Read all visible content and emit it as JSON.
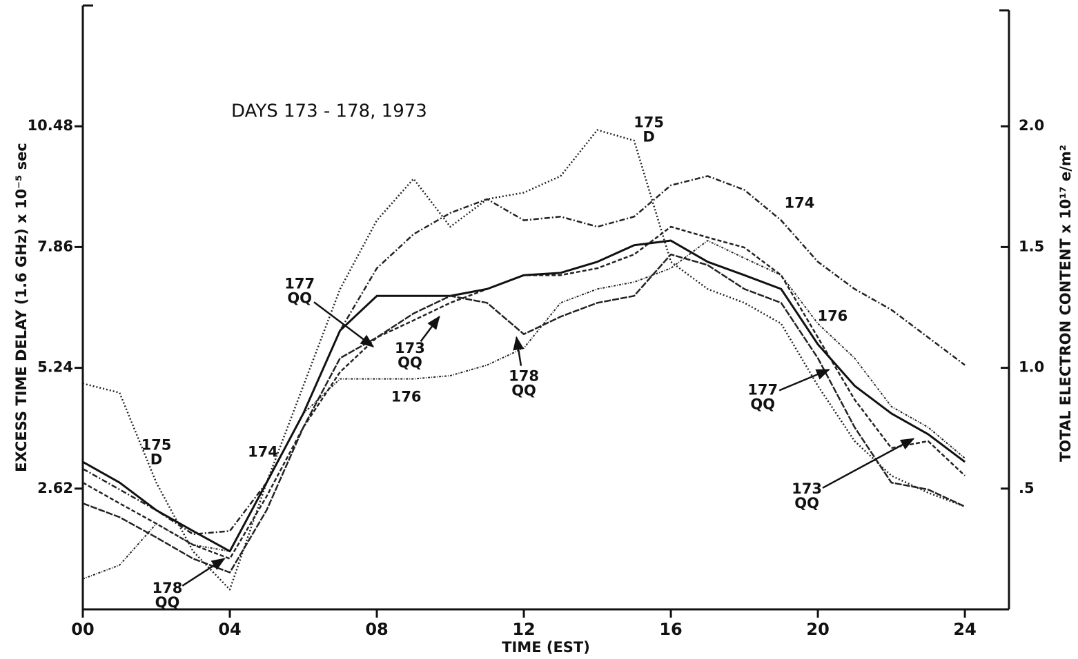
{
  "chart_data": {
    "type": "line",
    "title": "DAYS 173 - 178, 1973",
    "x_label": "TIME (EST)",
    "y_label": "EXCESS TIME DELAY (1.6 GHz) x 10⁻⁵ sec",
    "y2_label": "TOTAL ELECTRON CONTENT x 10¹⁷ e/m²",
    "x": [
      0,
      1,
      2,
      3,
      4,
      5,
      6,
      7,
      8,
      9,
      10,
      11,
      12,
      13,
      14,
      15,
      16,
      17,
      18,
      19,
      20,
      21,
      22,
      23,
      24
    ],
    "xlim": [
      0,
      25.2
    ],
    "xticks": [
      {
        "value": 0,
        "label": "00"
      },
      {
        "value": 4,
        "label": "04"
      },
      {
        "value": 8,
        "label": "08"
      },
      12,
      16,
      20,
      24
    ],
    "ylim": [
      0,
      13.1
    ],
    "yticks": [
      2.62,
      5.24,
      7.86,
      10.48
    ],
    "y2lim": [
      0,
      2.5
    ],
    "y2ticks": [
      {
        "value": 0.5,
        "label": ".5"
      },
      {
        "value": 1.0,
        "label": "1.0"
      },
      1.5,
      {
        "value": 2.0,
        "label": "2.0"
      }
    ],
    "grid": false,
    "series": [
      {
        "name": "173",
        "color": "#222",
        "dash": "6 3",
        "width": 2.5,
        "values": [
          2.75,
          2.3,
          1.86,
          1.4,
          1.1,
          2.45,
          3.95,
          5.15,
          5.9,
          6.27,
          6.65,
          6.95,
          7.25,
          7.25,
          7.4,
          7.7,
          8.3,
          8.07,
          7.85,
          7.25,
          5.9,
          4.55,
          3.5,
          3.65,
          2.9
        ]
      },
      {
        "name": "174",
        "color": "#222",
        "dash": "8 3 2 3",
        "width": 2.5,
        "values": [
          3.05,
          2.6,
          2.15,
          1.63,
          1.7,
          2.75,
          4.25,
          6.05,
          7.4,
          8.14,
          8.6,
          8.9,
          8.44,
          8.52,
          8.3,
          8.52,
          9.2,
          9.4,
          9.1,
          8.44,
          7.54,
          6.95,
          6.5,
          5.9,
          5.3
        ]
      },
      {
        "name": "175",
        "color": "#222",
        "dash": "2 3",
        "width": 2.5,
        "values": [
          4.9,
          4.7,
          2.75,
          1.26,
          0.43,
          2.75,
          4.85,
          6.95,
          8.44,
          9.34,
          8.3,
          8.9,
          9.04,
          9.4,
          10.4,
          10.17,
          7.54,
          6.95,
          6.65,
          6.2,
          4.85,
          3.65,
          2.9,
          2.53,
          2.23
        ]
      },
      {
        "name": "176",
        "color": "#222",
        "dash": "3 2 1 2",
        "width": 2,
        "values": [
          0.66,
          0.96,
          1.86,
          1.4,
          1.26,
          2.75,
          4.25,
          5.0,
          5.0,
          5.0,
          5.07,
          5.3,
          5.67,
          6.65,
          6.95,
          7.1,
          7.4,
          8.0,
          7.62,
          7.25,
          6.2,
          5.45,
          4.4,
          3.95,
          3.28
        ]
      },
      {
        "name": "177",
        "color": "#111",
        "dash": "none",
        "width": 3,
        "values": [
          3.2,
          2.75,
          2.15,
          1.7,
          1.26,
          2.75,
          4.25,
          6.05,
          6.8,
          6.8,
          6.8,
          6.95,
          7.25,
          7.3,
          7.54,
          7.9,
          8.0,
          7.54,
          7.25,
          6.95,
          5.75,
          4.85,
          4.25,
          3.8,
          3.2
        ]
      },
      {
        "name": "178",
        "color": "#222",
        "dash": "10 2",
        "width": 2.5,
        "values": [
          2.3,
          2.0,
          1.56,
          1.1,
          0.8,
          2.15,
          3.95,
          5.45,
          5.9,
          6.42,
          6.8,
          6.65,
          5.97,
          6.35,
          6.65,
          6.8,
          7.7,
          7.47,
          6.95,
          6.65,
          5.45,
          3.95,
          2.75,
          2.6,
          2.23
        ]
      }
    ],
    "annotations": [
      {
        "lines": [
          "175",
          "D"
        ],
        "x": 2.0,
        "y": 3.4
      },
      {
        "lines": [
          "174"
        ],
        "x": 4.9,
        "y": 3.4
      },
      {
        "lines": [
          "178",
          "QQ"
        ],
        "x": 2.3,
        "y": 0.3,
        "to": [
          3.85,
          1.1
        ]
      },
      {
        "lines": [
          "177",
          "QQ"
        ],
        "x": 5.9,
        "y": 6.9,
        "to": [
          7.9,
          5.7
        ]
      },
      {
        "lines": [
          "173",
          "QQ"
        ],
        "x": 8.9,
        "y": 5.5,
        "to": [
          9.7,
          6.35
        ]
      },
      {
        "lines": [
          "176"
        ],
        "x": 8.8,
        "y": 4.6
      },
      {
        "lines": [
          "178",
          "QQ"
        ],
        "x": 12.0,
        "y": 4.9,
        "to": [
          11.8,
          5.9
        ]
      },
      {
        "lines": [
          "175",
          "D"
        ],
        "x": 15.4,
        "y": 10.4
      },
      {
        "lines": [
          "174"
        ],
        "x": 19.5,
        "y": 8.8
      },
      {
        "lines": [
          "176"
        ],
        "x": 20.4,
        "y": 6.35
      },
      {
        "lines": [
          "177",
          "QQ"
        ],
        "x": 18.5,
        "y": 4.6,
        "to": [
          20.3,
          5.2
        ]
      },
      {
        "lines": [
          "173",
          "QQ"
        ],
        "x": 19.7,
        "y": 2.45,
        "to": [
          22.6,
          3.7
        ]
      }
    ]
  }
}
